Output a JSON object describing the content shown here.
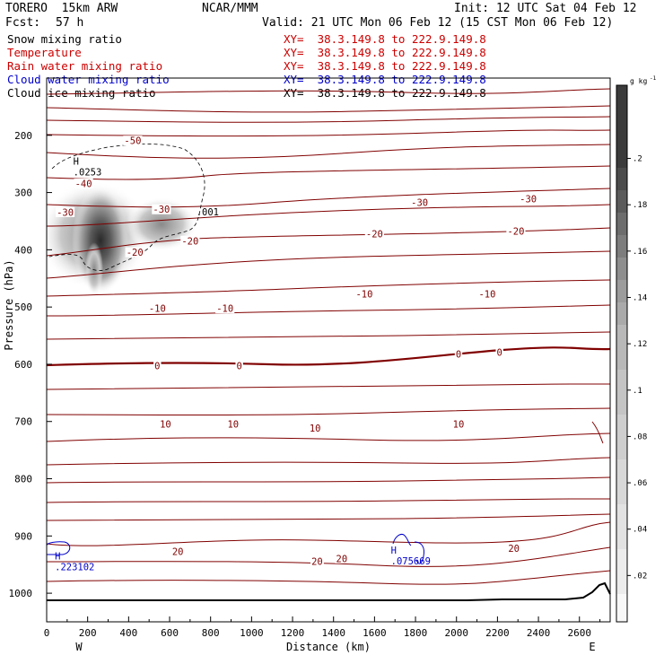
{
  "header": {
    "model": "TORERO  15km ARW",
    "org": "NCAR/MMM",
    "init": "Init: 12 UTC Sat 04 Feb 12",
    "fcst_label": "Fcst:",
    "fcst_value": "57 h",
    "valid": "Valid: 21 UTC Mon 06 Feb 12 (15 CST Mon 06 Feb 12)"
  },
  "variables": [
    {
      "name": "Snow mixing ratio",
      "xy": "XY=  38.3.149.8 to 222.9.149.8",
      "color": "#000000"
    },
    {
      "name": "Temperature",
      "xy": "XY=  38.3.149.8 to 222.9.149.8",
      "color": "#cc0000"
    },
    {
      "name": "Rain water mixing ratio",
      "xy": "XY=  38.3.149.8 to 222.9.149.8",
      "color": "#cc0000"
    },
    {
      "name": "Cloud water mixing ratio",
      "xy": "XY=  38.3.149.8 to 222.9.149.8",
      "color": "#0000cc"
    },
    {
      "name": "Cloud ice mixing ratio",
      "xy": "XY=  38.3.149.8 to 222.9.149.8",
      "color": "#000000"
    }
  ],
  "chart_data": {
    "type": "heatmap",
    "xlabel": "Distance (km)",
    "ylabel": "Pressure (hPa)",
    "xlim": [
      0,
      2750
    ],
    "ylim": [
      1050,
      100
    ],
    "xticks": [
      0,
      200,
      400,
      600,
      800,
      1000,
      1200,
      1400,
      1600,
      1800,
      2000,
      2200,
      2400,
      2600
    ],
    "yticks": [
      200,
      300,
      400,
      500,
      600,
      700,
      800,
      900,
      1000
    ],
    "x_end_labels": {
      "left": "W",
      "right": "E"
    },
    "colorbar": {
      "unit": "g kg",
      "unit_exp": "-1",
      "levels": [
        0.02,
        0.04,
        0.06,
        0.08,
        0.1,
        0.12,
        0.14,
        0.16,
        0.18,
        0.2
      ],
      "labels": [
        ".02",
        ".04",
        ".06",
        ".08",
        ".1",
        ".12",
        ".14",
        ".16",
        ".18",
        ".2"
      ]
    },
    "temperature_contours": [
      {
        "label": "-50",
        "x": 420,
        "p": 210
      },
      {
        "label": "-40",
        "x": 180,
        "p": 285
      },
      {
        "label": "-30",
        "x": 90,
        "p": 335
      },
      {
        "label": "-30",
        "x": 560,
        "p": 330
      },
      {
        "label": "-30",
        "x": 1820,
        "p": 318
      },
      {
        "label": "-30",
        "x": 2350,
        "p": 312
      },
      {
        "label": "-20",
        "x": 430,
        "p": 405
      },
      {
        "label": "-20",
        "x": 700,
        "p": 385
      },
      {
        "label": "-20",
        "x": 1600,
        "p": 373
      },
      {
        "label": "-20",
        "x": 2290,
        "p": 368
      },
      {
        "label": "-10",
        "x": 540,
        "p": 503
      },
      {
        "label": "-10",
        "x": 870,
        "p": 503
      },
      {
        "label": "-10",
        "x": 1550,
        "p": 478
      },
      {
        "label": "-10",
        "x": 2150,
        "p": 478
      },
      {
        "label": "0",
        "x": 540,
        "p": 603
      },
      {
        "label": "0",
        "x": 940,
        "p": 603
      },
      {
        "label": "0",
        "x": 2010,
        "p": 583
      },
      {
        "label": "0",
        "x": 2210,
        "p": 580
      },
      {
        "label": "10",
        "x": 580,
        "p": 705
      },
      {
        "label": "10",
        "x": 910,
        "p": 705
      },
      {
        "label": "10",
        "x": 1310,
        "p": 712
      },
      {
        "label": "10",
        "x": 2010,
        "p": 705
      },
      {
        "label": "20",
        "x": 640,
        "p": 928
      },
      {
        "label": "20",
        "x": 1320,
        "p": 945
      },
      {
        "label": "20",
        "x": 1440,
        "p": 940
      },
      {
        "label": "20",
        "x": 2280,
        "p": 922
      }
    ],
    "annotations": [
      {
        "label": "H",
        "value": ".0253",
        "x": 130,
        "p": 270,
        "color": "#000000"
      },
      {
        "label": "",
        "value": ".001",
        "x": 730,
        "p": 340,
        "color": "#000000"
      },
      {
        "label": "H",
        "value": ".223102",
        "x": 40,
        "p": 960,
        "color": "#0000cc"
      },
      {
        "label": "H",
        "value": ".075669",
        "x": 1680,
        "p": 950,
        "color": "#0000cc"
      }
    ]
  }
}
